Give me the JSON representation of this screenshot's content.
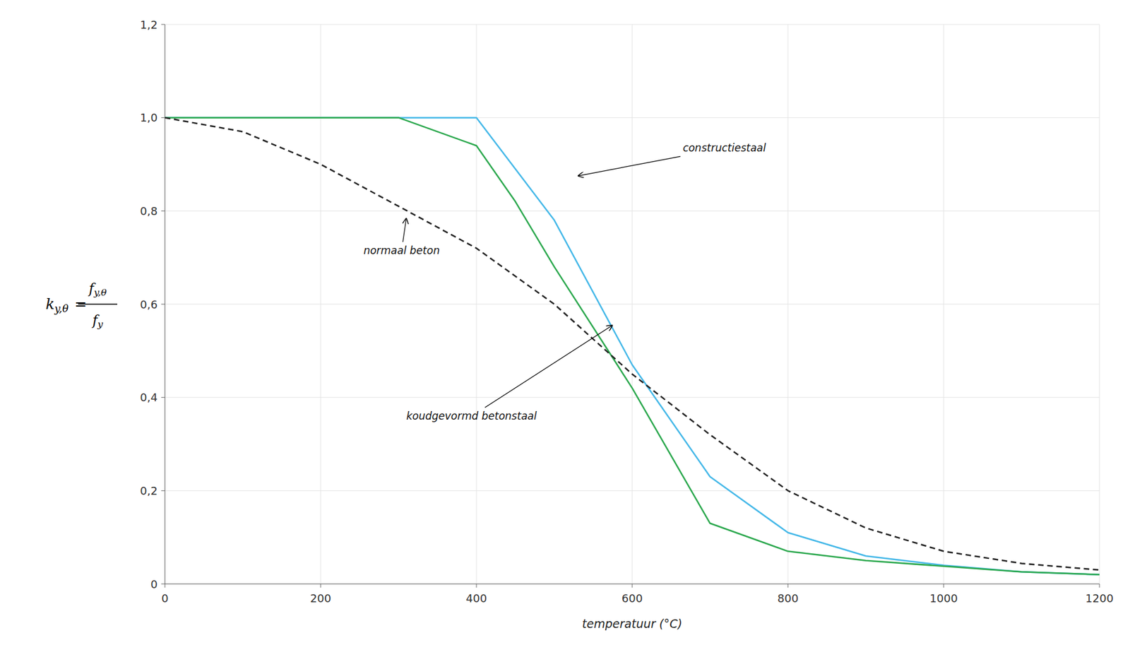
{
  "chart_data": {
    "type": "line",
    "xlabel": "temperatuur (°C)",
    "ylabel": {
      "left": "k",
      "left_sub": "y,θ",
      "equals": "=",
      "numerator": "f",
      "numerator_sub": "y,θ",
      "denominator": "f",
      "denominator_sub": "y"
    },
    "series": [
      {
        "color": "#45b8e8",
        "line_style": "solid",
        "x": [
          0,
          100,
          200,
          300,
          400,
          500,
          600,
          700,
          800,
          900,
          1000,
          1100,
          1200
        ],
        "values": [
          1.0,
          1.0,
          1.0,
          1.0,
          1.0,
          0.78,
          0.47,
          0.23,
          0.11,
          0.06,
          0.04,
          0.026,
          0.02
        ]
      },
      {
        "color": "#2ca84e",
        "line_style": "solid",
        "x": [
          0,
          100,
          200,
          300,
          400,
          450,
          500,
          600,
          700,
          800,
          900,
          1000,
          1100,
          1200
        ],
        "values": [
          1.0,
          1.0,
          1.0,
          1.0,
          0.94,
          0.82,
          0.68,
          0.42,
          0.13,
          0.07,
          0.05,
          0.038,
          0.026,
          0.02
        ]
      },
      {
        "color": "#222222",
        "line_style": "dashed",
        "x": [
          0,
          100,
          200,
          300,
          400,
          500,
          600,
          700,
          800,
          900,
          1000,
          1100,
          1200
        ],
        "values": [
          1.0,
          0.97,
          0.9,
          0.81,
          0.72,
          0.6,
          0.45,
          0.32,
          0.2,
          0.12,
          0.07,
          0.044,
          0.03
        ]
      }
    ],
    "xlim": [
      0,
      1200
    ],
    "ylim": [
      0,
      1.2
    ],
    "xticks": [
      0,
      200,
      400,
      600,
      800,
      1000,
      1200
    ],
    "yticks": [
      0,
      {
        "value": 0.2,
        "label": "0,2"
      },
      {
        "value": 0.4,
        "label": "0,4"
      },
      {
        "value": 0.6,
        "label": "0,6"
      },
      {
        "value": 0.8,
        "label": "0,8"
      },
      {
        "value": 1.0,
        "label": "1,0"
      },
      {
        "value": 1.2,
        "label": "1,2"
      }
    ],
    "grid": true,
    "annotations": [
      {
        "text": "constructiestaal",
        "xy": [
          530,
          0.875
        ],
        "xytext": [
          665,
          0.935
        ]
      },
      {
        "text": "normaal beton",
        "xy": [
          310,
          0.785
        ],
        "xytext": [
          255,
          0.715
        ]
      },
      {
        "text": "koudgevormd betonstaal",
        "xy": [
          575,
          0.555
        ],
        "xytext": [
          310,
          0.36
        ]
      }
    ]
  }
}
